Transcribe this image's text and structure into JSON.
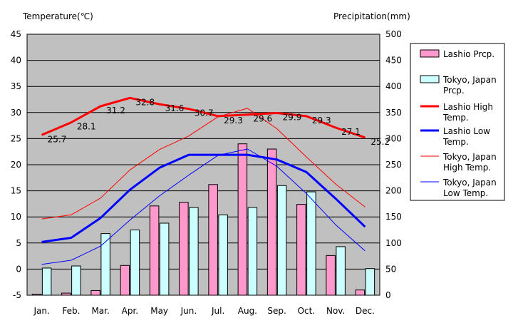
{
  "chart_data": {
    "type": "bar",
    "ylabel": "Temperature(℃)",
    "y2label": "Precipitation(mm)",
    "ylim": [
      -5,
      45
    ],
    "y2lim": [
      0,
      500
    ],
    "yticks": [
      "-5",
      "0",
      "5",
      "10",
      "15",
      "20",
      "25",
      "30",
      "35",
      "40",
      "45"
    ],
    "y2ticks": [
      "0",
      "50",
      "100",
      "150",
      "200",
      "250",
      "300",
      "350",
      "400",
      "450",
      "500"
    ],
    "grid": true,
    "legend_position": "right",
    "categories": [
      "Jan.",
      "Feb.",
      "Mar.",
      "Apr.",
      "May",
      "Jun.",
      "Jul.",
      "Aug.",
      "Sep.",
      "Oct.",
      "Nov.",
      "Dec."
    ],
    "bar_series": [
      {
        "name": "Lashio Prcp.",
        "color": "#FF99CC",
        "values": [
          2,
          4,
          9,
          57,
          171,
          178,
          212,
          290,
          280,
          174,
          76,
          10
        ]
      },
      {
        "name": "Tokyo, Japan Prcp.",
        "color": "#CCFFFF",
        "values": [
          52,
          56,
          118,
          125,
          138,
          168,
          154,
          168,
          210,
          198,
          93,
          51
        ]
      }
    ],
    "line_series": [
      {
        "name": "Lashio High Temp.",
        "color": "#FF0000",
        "width": 3,
        "values": [
          25.7,
          28.1,
          31.2,
          32.8,
          31.6,
          30.7,
          29.3,
          29.6,
          29.9,
          29.3,
          27.1,
          25.2
        ]
      },
      {
        "name": "Lashio Low Temp.",
        "color": "#0000FF",
        "width": 3,
        "values": [
          5.2,
          6.0,
          9.8,
          15.2,
          19.4,
          21.9,
          21.9,
          21.9,
          21.0,
          18.6,
          13.5,
          8.1
        ]
      },
      {
        "name": "Tokyo, Japan High Temp.",
        "color": "#FF0000",
        "width": 1,
        "values": [
          9.6,
          10.4,
          13.6,
          19.0,
          22.9,
          25.5,
          29.2,
          30.8,
          26.9,
          21.5,
          16.3,
          11.9
        ]
      },
      {
        "name": "Tokyo, Japan Low Temp.",
        "color": "#0000FF",
        "width": 1,
        "values": [
          0.9,
          1.7,
          4.4,
          9.4,
          14.0,
          18.0,
          21.8,
          23.0,
          19.7,
          14.5,
          8.5,
          3.5
        ]
      }
    ],
    "data_labels": [
      "25.7",
      "28.1",
      "31.2",
      "32.8",
      "31.6",
      "30.7",
      "29.3",
      "29.6",
      "29.9",
      "29.3",
      "27.1",
      "25.2"
    ],
    "legend": [
      {
        "kind": "bar",
        "color": "#FF99CC",
        "lines": [
          "Lashio Prcp."
        ]
      },
      {
        "kind": "bar",
        "color": "#CCFFFF",
        "lines": [
          "Tokyo, Japan",
          "Prcp."
        ]
      },
      {
        "kind": "line",
        "color": "#FF0000",
        "width": 3,
        "lines": [
          "Lashio High",
          "Temp."
        ]
      },
      {
        "kind": "line",
        "color": "#0000FF",
        "width": 3,
        "lines": [
          "Lashio Low",
          "Temp."
        ]
      },
      {
        "kind": "line",
        "color": "#FF0000",
        "width": 1,
        "lines": [
          "Tokyo, Japan",
          "High Temp."
        ]
      },
      {
        "kind": "line",
        "color": "#0000FF",
        "width": 1,
        "lines": [
          "Tokyo, Japan",
          "Low Temp."
        ]
      }
    ],
    "plot_background": "#C0C0C0"
  }
}
